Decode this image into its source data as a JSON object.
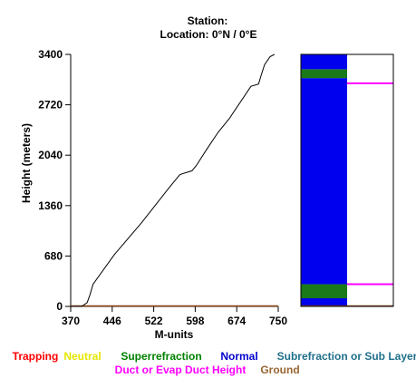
{
  "chart_data": {
    "type": "line",
    "title_line1": "Station:",
    "title_line2": "Location:   0°N /   0°E",
    "xlabel": "M-units",
    "ylabel": "Height (meters)",
    "xlim": [
      370,
      750
    ],
    "ylim": [
      0,
      3400
    ],
    "xticks": [
      "370",
      "446",
      "522",
      "598",
      "674",
      "750"
    ],
    "yticks": [
      "0",
      "680",
      "1360",
      "2040",
      "2720",
      "3400"
    ],
    "profile": {
      "x": [
        370,
        390,
        400,
        405,
        411,
        450,
        500,
        550,
        570,
        592,
        600,
        620,
        640,
        660,
        700,
        714,
        718,
        725,
        735,
        743
      ],
      "y": [
        0,
        0,
        50,
        150,
        300,
        700,
        1130,
        1600,
        1780,
        1830,
        1900,
        2130,
        2350,
        2530,
        2970,
        3000,
        3100,
        3260,
        3370,
        3400
      ]
    },
    "ground_line": {
      "x": [
        370,
        750
      ],
      "y": [
        0,
        0
      ],
      "color": "#8b4513"
    },
    "layer_bar": {
      "ylim": [
        0,
        3400
      ],
      "bands": [
        {
          "type": "Normal",
          "from": 0,
          "to": 110,
          "color": "#0000ee"
        },
        {
          "type": "Superrefraction",
          "from": 110,
          "to": 300,
          "color": "#1a7a1a"
        },
        {
          "type": "Normal",
          "from": 300,
          "to": 3080,
          "color": "#0000ee"
        },
        {
          "type": "Superrefraction",
          "from": 3080,
          "to": 3200,
          "color": "#1a7a1a"
        },
        {
          "type": "Normal",
          "from": 3200,
          "to": 3400,
          "color": "#0000ee"
        }
      ],
      "duct_heights": [
        300,
        3010
      ],
      "duct_color": "#ff00ff"
    },
    "legend": [
      {
        "label": "Trapping",
        "color": "#ff0000"
      },
      {
        "label": "Neutral",
        "color": "#e6e600"
      },
      {
        "label": "Superrefraction",
        "color": "#008000"
      },
      {
        "label": "Normal",
        "color": "#0000cc"
      },
      {
        "label": "Subrefraction or Sub Layer",
        "color": "#1f6f8b"
      },
      {
        "label": "Duct or Evap Duct Height",
        "color": "#ff00ff"
      },
      {
        "label": "Ground",
        "color": "#996633"
      }
    ]
  }
}
